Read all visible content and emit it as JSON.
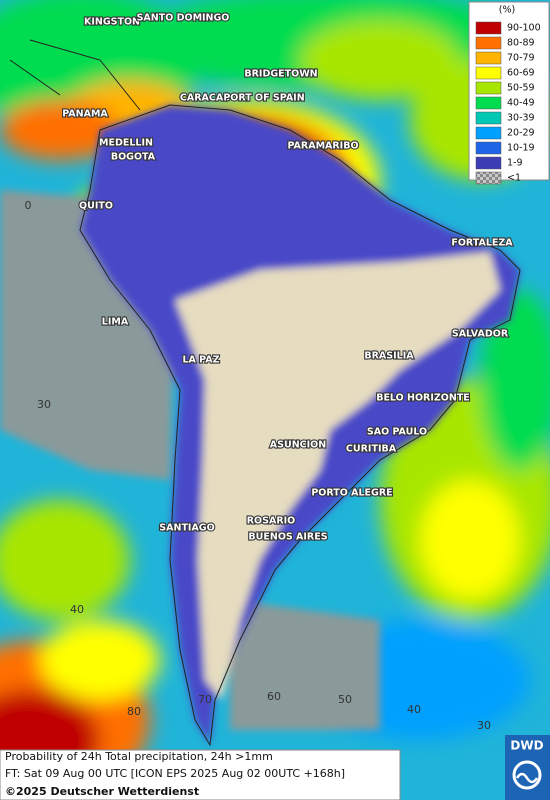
{
  "legend": {
    "title": "(%)",
    "items": [
      {
        "label": "90-100",
        "color": "#c00000"
      },
      {
        "label": "80-89",
        "color": "#ff7000"
      },
      {
        "label": "70-79",
        "color": "#ffb400"
      },
      {
        "label": "60-69",
        "color": "#ffff00"
      },
      {
        "label": "50-59",
        "color": "#a8e600"
      },
      {
        "label": "40-49",
        "color": "#00dc50"
      },
      {
        "label": "30-39",
        "color": "#00c8b4"
      },
      {
        "label": "20-29",
        "color": "#00a0ff"
      },
      {
        "label": "10-19",
        "color": "#1e64e6"
      },
      {
        "label": "1-9",
        "color": "#3c3cb4"
      },
      {
        "label": "<1",
        "color": "#a0a0a0"
      }
    ]
  },
  "cities": [
    "KINGSTON",
    "SANTO DOMINGO",
    "BRIDGETOWN",
    "CARACAS",
    "PORT OF SPAIN",
    "PANAMA",
    "MEDELLIN",
    "BOGOTA",
    "PARAMARIBO",
    "QUITO",
    "FORTALEZA",
    "LIMA",
    "SALVADOR",
    "LA PAZ",
    "BRASILIA",
    "BELO HORIZONTE",
    "SAO PAULO",
    "ASUNCION",
    "CURITIBA",
    "PORTO ALEGRE",
    "SANTIAGO",
    "ROSARIO",
    "BUENOS AIRES"
  ],
  "grid_labels": [
    "0",
    "30",
    "40",
    "80",
    "70",
    "60",
    "50",
    "40",
    "30"
  ],
  "footer": {
    "line1": "Probability of 24h Total precipitation, 24h >1mm",
    "line2": "FT: Sat 09 Aug 00 UTC [ICON EPS 2025 Aug 02 00UTC +168h]",
    "line3": "©2025 Deutscher Wetterdienst"
  },
  "logo": "DWD"
}
